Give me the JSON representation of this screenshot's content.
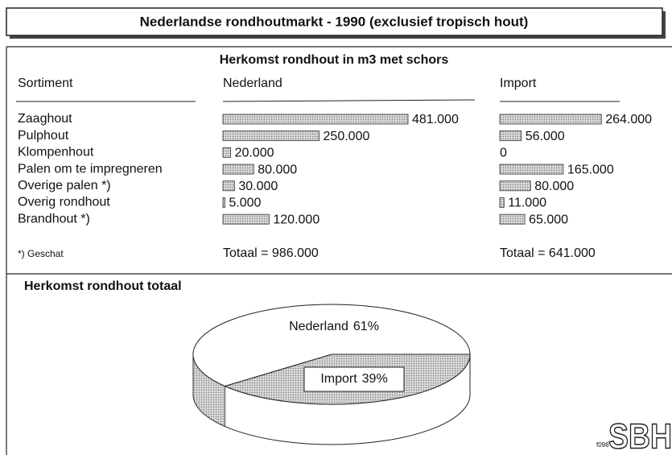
{
  "title": "Nederlandse rondhoutmarkt - 1990 (exclusief tropisch hout)",
  "subtitle": "Herkomst rondhout in m3 met schors",
  "row_header": "Sortiment",
  "footnote": "*) Geschat",
  "code": "f096",
  "logo": "SBH",
  "chart_data": [
    {
      "type": "bar",
      "name": "Nederland",
      "color": "#c4c4c4",
      "categories": [
        "Zaaghout",
        "Pulphout",
        "Klompenhout",
        "Palen om te impregneren",
        "Overige palen  *)",
        "Overig rondhout",
        "Brandhout  *)"
      ],
      "values": [
        481000,
        250000,
        20000,
        80000,
        30000,
        5000,
        120000
      ],
      "value_labels": [
        "481.000",
        "250.000",
        "20.000",
        "80.000",
        "30.000",
        "5.000",
        "120.000"
      ],
      "total": "Totaal = 986.000"
    },
    {
      "type": "bar",
      "name": "Import",
      "color": "#c4c4c4",
      "values": [
        264000,
        56000,
        0,
        165000,
        80000,
        11000,
        65000
      ],
      "value_labels": [
        "264.000",
        "56.000",
        "0",
        "165.000",
        "80.000",
        "11.000",
        "65.000"
      ],
      "total": "Totaal = 641.000"
    },
    {
      "type": "pie",
      "title": "Herkomst rondhout totaal",
      "categories": [
        "Nederland",
        "Import"
      ],
      "values": [
        61,
        39
      ],
      "value_labels": [
        "61%",
        "39%"
      ],
      "colors": [
        "#ffffff",
        "#b4b4b4"
      ]
    }
  ]
}
